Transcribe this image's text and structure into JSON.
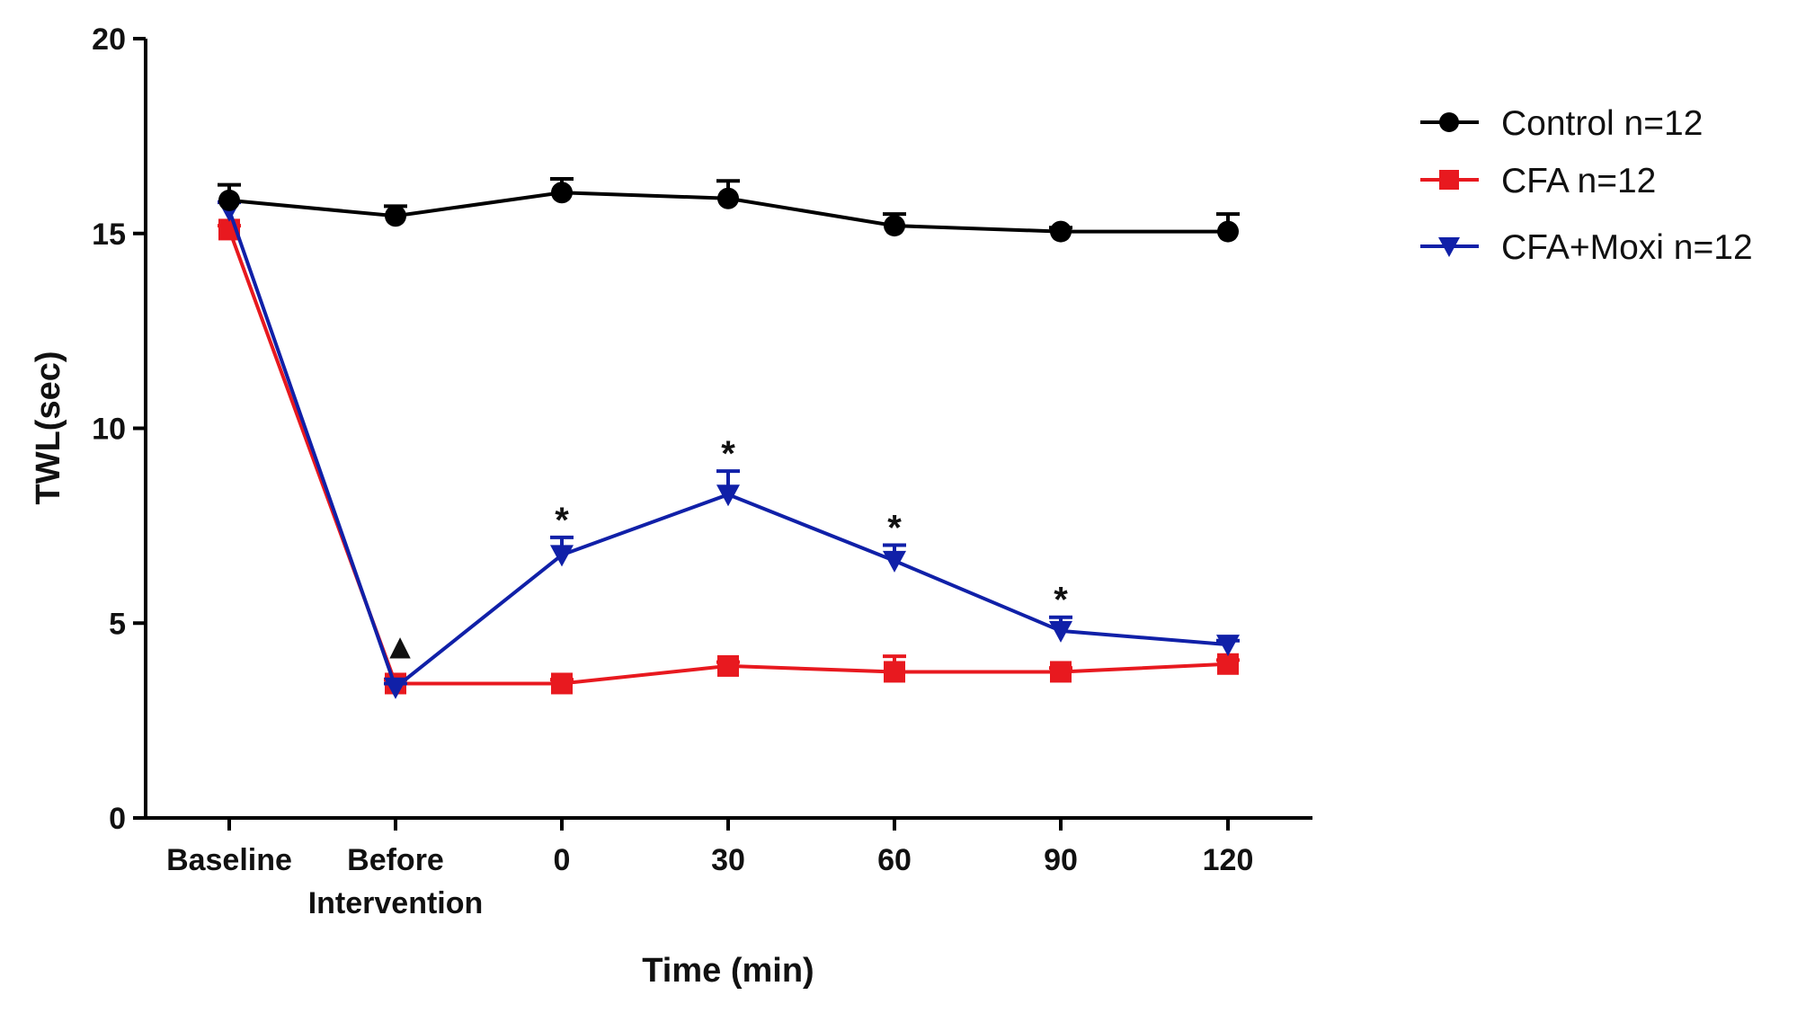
{
  "chart_data": {
    "type": "line",
    "title": "",
    "xlabel": "Time (min)",
    "ylabel": "TWL(sec)",
    "ylim": [
      0,
      20
    ],
    "yticks": [
      "0",
      "5",
      "10",
      "15",
      "20"
    ],
    "categories": [
      "Baseline",
      "Before\nIntervention",
      "0",
      "30",
      "60",
      "90",
      "120"
    ],
    "grid": false,
    "legend_position": "top-right",
    "series": [
      {
        "name": "Control n=12",
        "color": "#000000",
        "marker": "circle",
        "values": [
          15.85,
          15.45,
          16.05,
          15.9,
          15.2,
          15.05,
          15.05
        ],
        "errors": [
          0.4,
          0.25,
          0.35,
          0.45,
          0.3,
          0.1,
          0.45
        ]
      },
      {
        "name": "CFA n=12",
        "color": "#e8191f",
        "marker": "square",
        "values": [
          15.1,
          3.45,
          3.45,
          3.9,
          3.75,
          3.75,
          3.95
        ],
        "errors": [
          0.1,
          0.1,
          0.1,
          0.1,
          0.4,
          0.1,
          0.1
        ]
      },
      {
        "name": "CFA+Moxi n=12",
        "color": "#1020a8",
        "marker": "triangle-down",
        "values": [
          15.6,
          3.35,
          6.75,
          8.3,
          6.6,
          4.8,
          4.45
        ],
        "errors": [
          0.2,
          0.1,
          0.45,
          0.6,
          0.4,
          0.35,
          0.1
        ]
      }
    ],
    "annotations": [
      {
        "text": "▲",
        "category_index": 1,
        "series": "CFA+Moxi n=12"
      },
      {
        "text": "*",
        "category_index": 2,
        "series": "CFA+Moxi n=12"
      },
      {
        "text": "*",
        "category_index": 3,
        "series": "CFA+Moxi n=12"
      },
      {
        "text": "*",
        "category_index": 4,
        "series": "CFA+Moxi n=12"
      },
      {
        "text": "*",
        "category_index": 5,
        "series": "CFA+Moxi n=12"
      }
    ]
  }
}
